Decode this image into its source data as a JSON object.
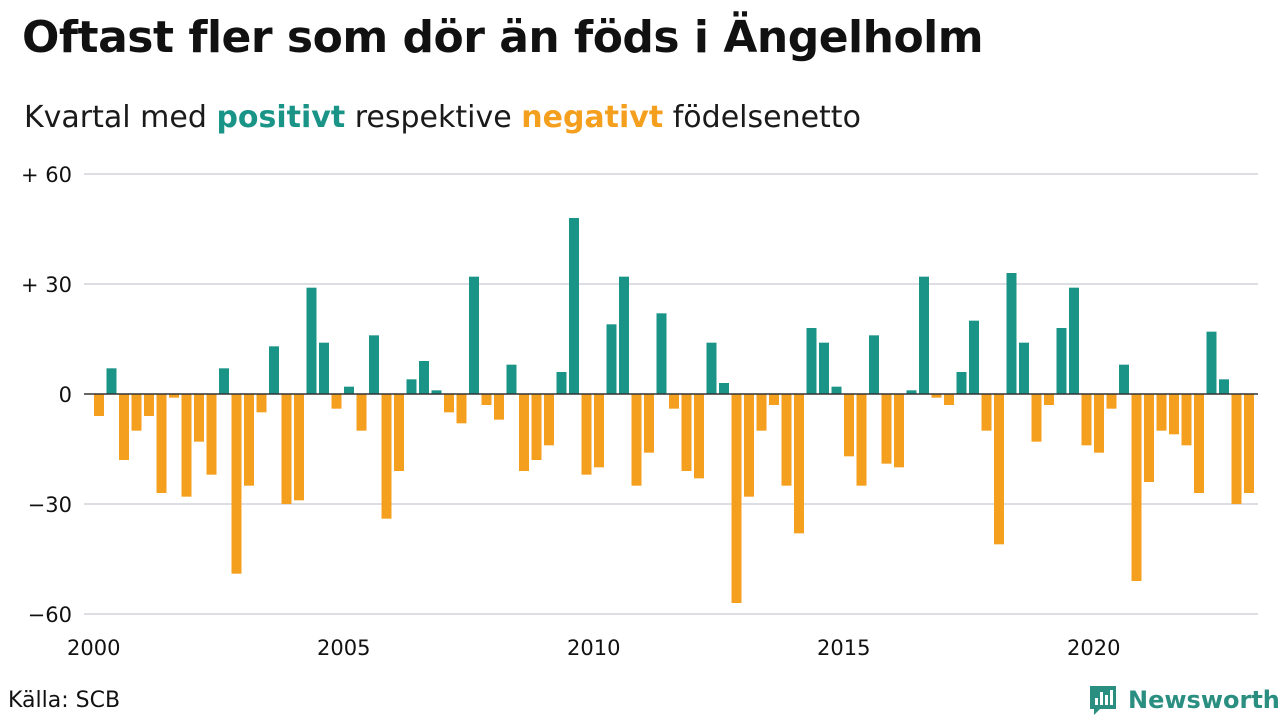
{
  "title": "Oftast fler som dör än föds i Ängelholm",
  "subtitle": {
    "prefix": "Kvartal med",
    "positive_word": "positivt",
    "middle": "respektive",
    "negative_word": "negativt",
    "suffix": "födelsenetto"
  },
  "colors": {
    "positive": "#1a9487",
    "negative": "#f59f1f",
    "grid": "#dddde4",
    "axis": "#333333"
  },
  "source": "Källa: SCB",
  "logo": {
    "text": "Newsworthy",
    "icon": "newsworthy-logo-icon"
  },
  "chart_data": {
    "type": "bar",
    "x_start": "2000 Q1",
    "interval": "quarter",
    "x_ticks": [
      2000,
      2005,
      2010,
      2015,
      2020
    ],
    "y_ticks": [
      {
        "value": 60,
        "label": "+ 60"
      },
      {
        "value": 30,
        "label": "+ 30"
      },
      {
        "value": 0,
        "label": "0"
      },
      {
        "value": -30,
        "label": "−30"
      },
      {
        "value": -60,
        "label": "−60"
      }
    ],
    "ylim": [
      -60,
      60
    ],
    "grid": true,
    "values": [
      -6,
      7,
      -18,
      -10,
      -6,
      -27,
      -1,
      -28,
      -13,
      -22,
      7,
      -49,
      -25,
      -5,
      13,
      -30,
      -29,
      29,
      14,
      -4,
      2,
      -10,
      16,
      -34,
      -21,
      4,
      9,
      1,
      -5,
      -8,
      32,
      -3,
      -7,
      8,
      -21,
      -18,
      -14,
      6,
      48,
      -22,
      -20,
      19,
      32,
      -25,
      -16,
      22,
      -4,
      -21,
      -23,
      14,
      3,
      -57,
      -28,
      -10,
      -3,
      -25,
      -38,
      18,
      14,
      2,
      -17,
      -25,
      16,
      -19,
      -20,
      1,
      32,
      -1,
      -3,
      6,
      20,
      -10,
      -41,
      33,
      14,
      -13,
      -3,
      18,
      29,
      -14,
      -16,
      -4,
      8,
      -51,
      -24,
      -10,
      -11,
      -14,
      -27,
      17,
      4,
      -30,
      -27
    ]
  }
}
